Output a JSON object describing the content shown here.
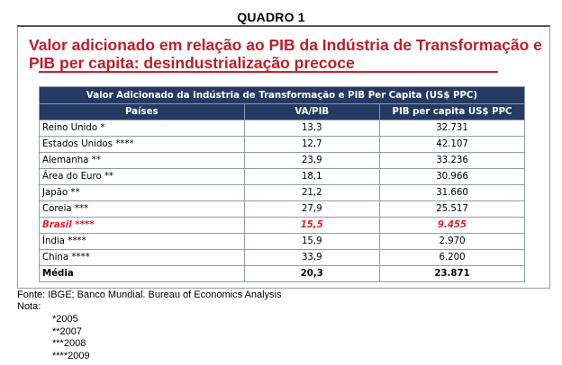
{
  "quadro_title": "QUADRO 1",
  "headline": "Valor adicionado em relação ao PIB da Indústria de Transformação e PIB per capita: desindustrialização precoce",
  "table": {
    "super_header": "Valor Adicionado da Indústria de Transformação e PIB Per Capita (US$ PPC)",
    "columns": [
      "Países",
      "VA/PIB",
      "PIB per capita US$ PPC"
    ],
    "rows": [
      {
        "pais": "Reino Unido *",
        "va": "13,3",
        "pib": "32.731"
      },
      {
        "pais": "Estados Unidos ****",
        "va": "12,7",
        "pib": "42.107"
      },
      {
        "pais": "Alemanha **",
        "va": "23,9",
        "pib": "33.236"
      },
      {
        "pais": "Área do Euro **",
        "va": "18,1",
        "pib": "30.966"
      },
      {
        "pais": "Japão **",
        "va": "21,2",
        "pib": "31.660"
      },
      {
        "pais": "Coreia ***",
        "va": "27,9",
        "pib": "25.517"
      },
      {
        "pais": "Brasil ****",
        "va": "15,5",
        "pib": "9.455"
      },
      {
        "pais": "Índia ****",
        "va": "15,9",
        "pib": "2.970"
      },
      {
        "pais": "China ****",
        "va": "33,9",
        "pib": "6.200"
      },
      {
        "pais": "Média",
        "va": "20,3",
        "pib": "23.871"
      }
    ]
  },
  "source": "Fonte: IBGE; Banco Mundial. Bureau of Economics Analysis",
  "notes_label": "Nota:",
  "notes": [
    "*2005",
    "**2007",
    "***2008",
    "****2009"
  ],
  "colors": {
    "headline": "#b8202c",
    "header_bg": "#243a62",
    "highlight": "#e2202a"
  }
}
